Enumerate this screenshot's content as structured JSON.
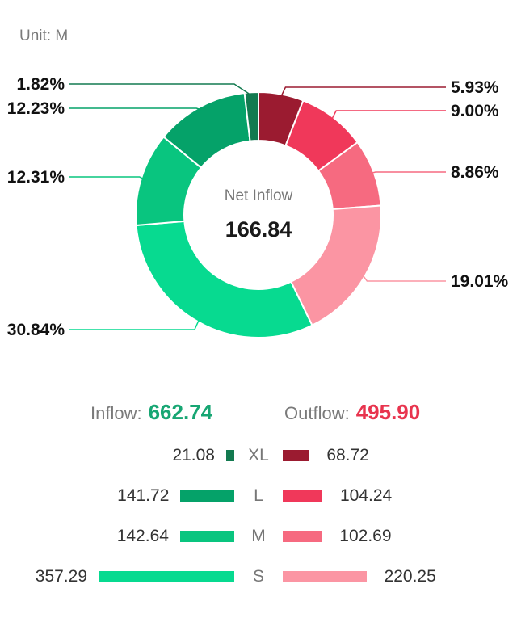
{
  "unit_label": "Unit: M",
  "center": {
    "label": "Net Inflow",
    "value": "166.84"
  },
  "totals": {
    "inflow_label": "Inflow:",
    "inflow_value": "662.74",
    "inflow_color": "#17a673",
    "outflow_label": "Outflow:",
    "outflow_value": "495.90",
    "outflow_color": "#e8344e"
  },
  "chart_data": [
    {
      "type": "pie",
      "subtype": "donut",
      "slices": [
        {
          "label": "5.93%",
          "category": "XL",
          "flow": "outflow",
          "value": 5.93,
          "color": "#9b1b30"
        },
        {
          "label": "9.00%",
          "category": "L",
          "flow": "outflow",
          "value": 9.0,
          "color": "#f0385a"
        },
        {
          "label": "8.86%",
          "category": "M",
          "flow": "outflow",
          "value": 8.86,
          "color": "#f66a80"
        },
        {
          "label": "19.01%",
          "category": "S",
          "flow": "outflow",
          "value": 19.01,
          "color": "#fb95a3"
        },
        {
          "label": "30.84%",
          "category": "S",
          "flow": "inflow",
          "value": 30.84,
          "color": "#07da90"
        },
        {
          "label": "12.31%",
          "category": "M",
          "flow": "inflow",
          "value": 12.31,
          "color": "#09c57f"
        },
        {
          "label": "12.23%",
          "category": "L",
          "flow": "inflow",
          "value": 12.23,
          "color": "#05a269"
        },
        {
          "label": "1.82%",
          "category": "XL",
          "flow": "inflow",
          "value": 1.82,
          "color": "#137a50"
        }
      ]
    },
    {
      "type": "bar",
      "orientation": "horizontal-diverging",
      "categories": [
        "XL",
        "L",
        "M",
        "S"
      ],
      "series": [
        {
          "name": "Inflow",
          "values": [
            21.08,
            141.72,
            142.64,
            357.29
          ],
          "labels": [
            "21.08",
            "141.72",
            "142.64",
            "357.29"
          ],
          "colors": [
            "#137a50",
            "#05a269",
            "#09c57f",
            "#07da90"
          ]
        },
        {
          "name": "Outflow",
          "values": [
            68.72,
            104.24,
            102.69,
            220.25
          ],
          "labels": [
            "68.72",
            "104.24",
            "102.69",
            "220.25"
          ],
          "colors": [
            "#9b1b30",
            "#f0385a",
            "#f66a80",
            "#fb95a3"
          ]
        }
      ],
      "xlim": [
        0,
        357.29
      ]
    }
  ]
}
